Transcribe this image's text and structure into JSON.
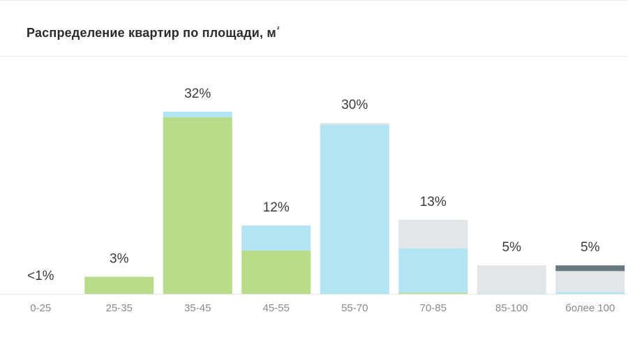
{
  "header": {
    "title": "Распределение квартир по площади, м",
    "title_sup": "²"
  },
  "colors": {
    "green": "#b8dc8a",
    "light_blue": "#b3e4f2",
    "light_gray": "#e3e6e8",
    "dark_slate": "#6a7880",
    "axis_line": "#e6e6e6",
    "label_text": "#3a3a3a",
    "tick_text": "#8a8a8a"
  },
  "chart_data": {
    "type": "bar",
    "stacked": true,
    "title": "Распределение квартир по площади, м²",
    "xlabel": "",
    "ylabel": "",
    "ylim": [
      0,
      32
    ],
    "grid": false,
    "legend": "none",
    "categories": [
      "0-25",
      "25-35",
      "35-45",
      "45-55",
      "55-70",
      "70-85",
      "85-100",
      "более 100"
    ],
    "totals_labels": [
      "<1%",
      "3%",
      "32%",
      "12%",
      "30%",
      "13%",
      "5%",
      "5%"
    ],
    "series": [
      {
        "color": "#b8dc8a",
        "values": [
          0,
          3,
          31,
          7.6,
          0,
          0.2,
          0,
          0
        ]
      },
      {
        "color": "#b3e4f2",
        "values": [
          0,
          0,
          1,
          4.4,
          29.7,
          7.8,
          0.1,
          0.3
        ]
      },
      {
        "color": "#e3e6e8",
        "values": [
          0,
          0,
          0,
          0,
          0.3,
          5,
          4.9,
          3.7
        ]
      },
      {
        "color": "#6a7880",
        "values": [
          0,
          0,
          0,
          0,
          0,
          0,
          0,
          1
        ]
      }
    ]
  }
}
